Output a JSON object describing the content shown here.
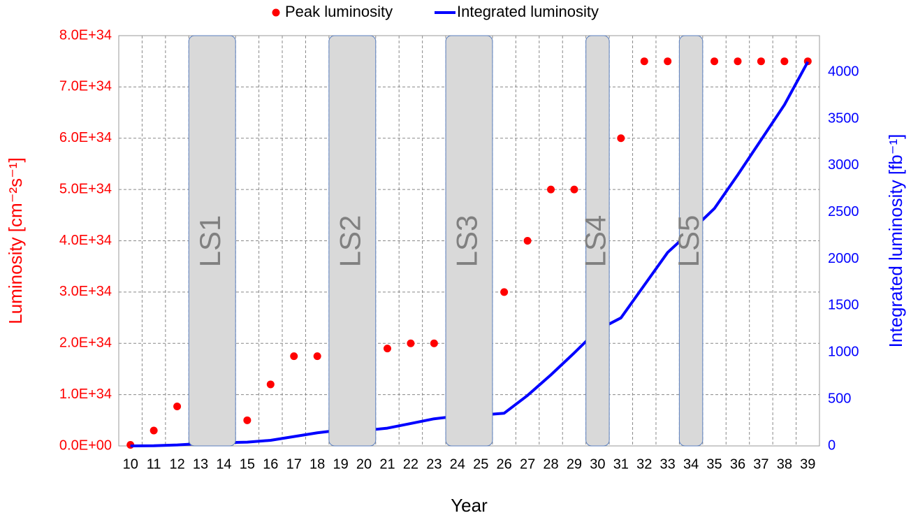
{
  "chart_data": {
    "type": "line",
    "x_label": "Year",
    "y_label": "Luminosity [cm⁻²s⁻¹]",
    "y2_label": "Integrated luminosity [fb⁻¹]",
    "categories": [
      "10",
      "11",
      "12",
      "13",
      "14",
      "15",
      "16",
      "17",
      "18",
      "19",
      "20",
      "21",
      "22",
      "23",
      "24",
      "25",
      "26",
      "27",
      "28",
      "29",
      "30",
      "31",
      "32",
      "33",
      "34",
      "35",
      "36",
      "37",
      "38",
      "39"
    ],
    "series": [
      {
        "name": "Peak luminosity",
        "type": "scatter",
        "color": "#ff0000",
        "values": [
          2e+32,
          3e+33,
          7.7e+33,
          null,
          null,
          5e+33,
          1.2e+34,
          1.75e+34,
          1.75e+34,
          null,
          null,
          1.9e+34,
          2e+34,
          2e+34,
          null,
          null,
          3e+34,
          4e+34,
          5e+34,
          5e+34,
          null,
          6e+34,
          7.5e+34,
          7.5e+34,
          null,
          7.5e+34,
          7.5e+34,
          7.5e+34,
          7.5e+34,
          7.5e+34
        ]
      },
      {
        "name": "Integrated luminosity",
        "type": "line",
        "axis": "y2",
        "color": "#0000ff",
        "values": [
          0,
          2,
          10,
          25,
          35,
          40,
          60,
          100,
          140,
          170,
          165,
          190,
          240,
          290,
          320,
          330,
          350,
          540,
          760,
          995,
          1240,
          1370,
          1720,
          2070,
          2300,
          2540,
          2900,
          3275,
          3650,
          4110
        ]
      }
    ],
    "ylim": [
      0,
      8e+34
    ],
    "yticks": [
      {
        "value": 0,
        "label": "0.0E+00"
      },
      {
        "value": 1e+34,
        "label": "1.0E+34"
      },
      {
        "value": 2e+34,
        "label": "2.0E+34"
      },
      {
        "value": 3e+34,
        "label": "3.0E+34"
      },
      {
        "value": 4e+34,
        "label": "4.0E+34"
      },
      {
        "value": 5e+34,
        "label": "5.0E+34"
      },
      {
        "value": 6e+34,
        "label": "6.0E+34"
      },
      {
        "value": 7e+34,
        "label": "7.0E+34"
      },
      {
        "value": 8e+34,
        "label": "8.0E+34"
      }
    ],
    "y2lim": [
      0,
      4390
    ],
    "y2ticks": [
      0,
      500,
      1000,
      1500,
      2000,
      2500,
      3000,
      3500,
      4000
    ],
    "grid": true,
    "legend": "top",
    "shutdowns": [
      {
        "label": "LS1",
        "from": "13",
        "to": "14"
      },
      {
        "label": "LS2",
        "from": "19",
        "to": "20"
      },
      {
        "label": "LS3",
        "from": "24",
        "to": "25"
      },
      {
        "label": "LS4",
        "from": "30",
        "to": "30"
      },
      {
        "label": "LS5",
        "from": "34",
        "to": "34"
      }
    ]
  }
}
